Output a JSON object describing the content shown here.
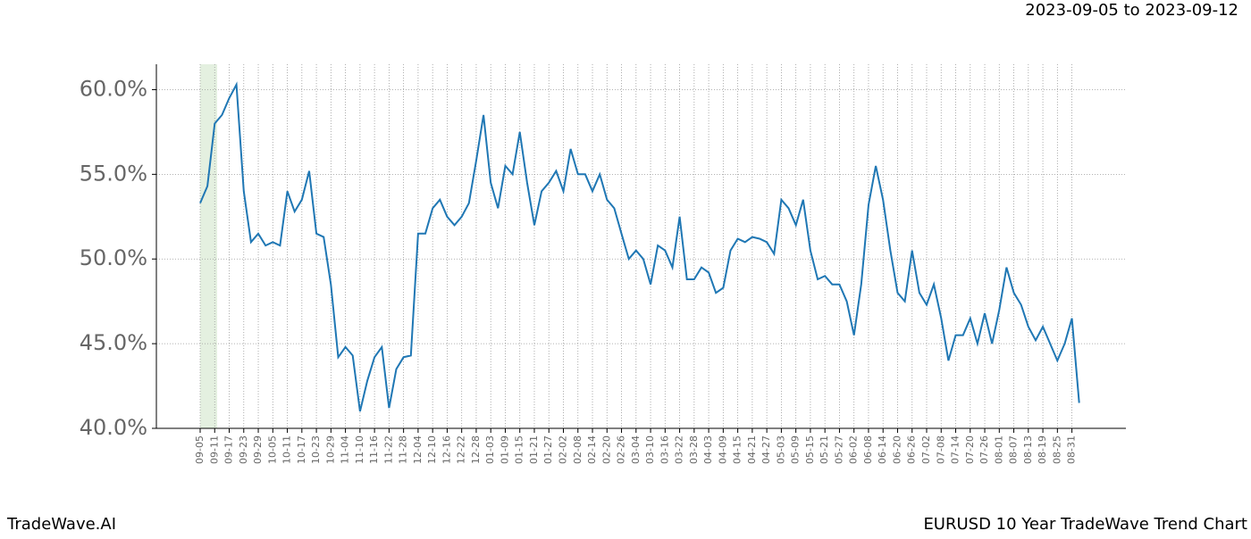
{
  "chart_data": {
    "type": "line",
    "date_range": "2023-09-05 to 2023-09-12",
    "brand": "TradeWave.AI",
    "title": "EURUSD 10 Year TradeWave Trend Chart",
    "x": [
      "09-05",
      null,
      "09-11",
      null,
      "09-17",
      null,
      "09-23",
      null,
      "09-29",
      null,
      "10-05",
      null,
      "10-11",
      null,
      "10-17",
      null,
      "10-23",
      null,
      "10-29",
      null,
      "11-04",
      null,
      "11-10",
      null,
      "11-16",
      null,
      "11-22",
      null,
      "11-28",
      null,
      "12-04",
      null,
      "12-10",
      null,
      "12-16",
      null,
      "12-22",
      null,
      "12-28",
      null,
      "01-03",
      null,
      "01-09",
      null,
      "01-15",
      null,
      "01-21",
      null,
      "01-27",
      null,
      "02-02",
      null,
      "02-08",
      null,
      "02-14",
      null,
      "02-20",
      null,
      "02-26",
      null,
      "03-04",
      null,
      "03-10",
      null,
      "03-16",
      null,
      "03-22",
      null,
      "03-28",
      null,
      "04-03",
      null,
      "04-09",
      null,
      "04-15",
      null,
      "04-21",
      null,
      "04-27",
      null,
      "05-03",
      null,
      "05-09",
      null,
      "05-15",
      null,
      "05-21",
      null,
      "05-27",
      null,
      "06-02",
      null,
      "06-08",
      null,
      "06-14",
      null,
      "06-20",
      null,
      "06-26",
      null,
      "07-02",
      null,
      "07-08",
      null,
      "07-14",
      null,
      "07-20",
      null,
      "07-26",
      null,
      "08-01",
      null,
      "08-07",
      null,
      "08-13",
      null,
      "08-19",
      null,
      "08-25",
      null,
      "08-31",
      null
    ],
    "series": [
      {
        "color": "#1f77b4",
        "values": [
          53.3,
          54.3,
          58.0,
          58.5,
          59.5,
          60.3,
          54.0,
          51.0,
          51.5,
          50.8,
          51.0,
          50.8,
          54.0,
          52.8,
          53.5,
          55.2,
          51.5,
          51.3,
          48.5,
          44.2,
          44.8,
          44.3,
          41.0,
          42.8,
          44.2,
          44.8,
          41.2,
          43.5,
          44.2,
          44.3,
          51.5,
          51.5,
          53.0,
          53.5,
          52.5,
          52.0,
          52.5,
          53.3,
          55.8,
          58.5,
          54.5,
          53.0,
          55.5,
          55.0,
          57.5,
          54.5,
          52.0,
          54.0,
          54.5,
          55.2,
          54.0,
          56.5,
          55.0,
          55.0,
          54.0,
          55.0,
          53.5,
          53.0,
          51.5,
          50.0,
          50.5,
          50.0,
          48.5,
          50.8,
          50.5,
          49.5,
          52.5,
          48.8,
          48.8,
          49.5,
          49.2,
          48.0,
          48.3,
          50.5,
          51.2,
          51.0,
          51.3,
          51.2,
          51.0,
          50.3,
          53.5,
          53.0,
          52.0,
          53.5,
          50.5,
          48.8,
          49.0,
          48.5,
          48.5,
          47.5,
          45.5,
          48.5,
          53.2,
          55.5,
          53.5,
          50.5,
          48.0,
          47.5,
          50.5,
          48.0,
          47.3,
          48.5,
          46.5,
          44.0,
          45.5,
          45.5,
          46.5,
          45.0,
          46.8,
          45.0,
          47.0,
          49.5,
          48.0,
          47.3,
          46.0,
          45.2,
          46.0,
          45.0,
          44.0,
          45.0,
          46.5,
          41.5
        ]
      }
    ],
    "ylim": [
      40,
      61.5
    ],
    "yticks": [
      {
        "value": 40,
        "label": "40.0%"
      },
      {
        "value": 45,
        "label": "45.0%"
      },
      {
        "value": 50,
        "label": "50.0%"
      },
      {
        "value": 55,
        "label": "55.0%"
      },
      {
        "value": 60,
        "label": "60.0%"
      }
    ],
    "grid": true
  }
}
